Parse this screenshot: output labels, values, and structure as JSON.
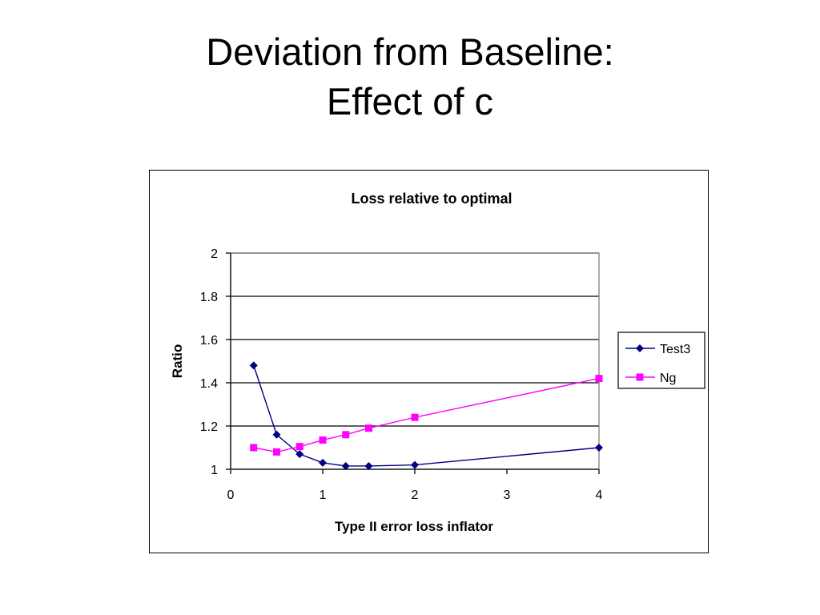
{
  "slide": {
    "title_line1": "Deviation from Baseline:",
    "title_line2": "Effect of c"
  },
  "chart_data": {
    "type": "line",
    "title": "Loss relative to optimal",
    "xlabel": "Type II error loss inflator",
    "ylabel": "Ratio",
    "xlim": [
      0,
      4
    ],
    "ylim": [
      1,
      2
    ],
    "xticks": [
      0,
      1,
      2,
      3,
      4
    ],
    "yticks": [
      1,
      1.2,
      1.4,
      1.6,
      1.8,
      2
    ],
    "grid": "horizontal",
    "legend_position": "right",
    "series": [
      {
        "name": "Test3",
        "color": "#000080",
        "marker": "diamond",
        "x": [
          0.25,
          0.5,
          0.75,
          1.0,
          1.25,
          1.5,
          2.0,
          4.0
        ],
        "y": [
          1.48,
          1.16,
          1.07,
          1.03,
          1.015,
          1.015,
          1.02,
          1.1
        ]
      },
      {
        "name": "Ng",
        "color": "#FF00FF",
        "marker": "square",
        "x": [
          0.25,
          0.5,
          0.75,
          1.0,
          1.25,
          1.5,
          2.0,
          4.0
        ],
        "y": [
          1.1,
          1.08,
          1.105,
          1.135,
          1.16,
          1.19,
          1.24,
          1.42
        ]
      }
    ]
  }
}
